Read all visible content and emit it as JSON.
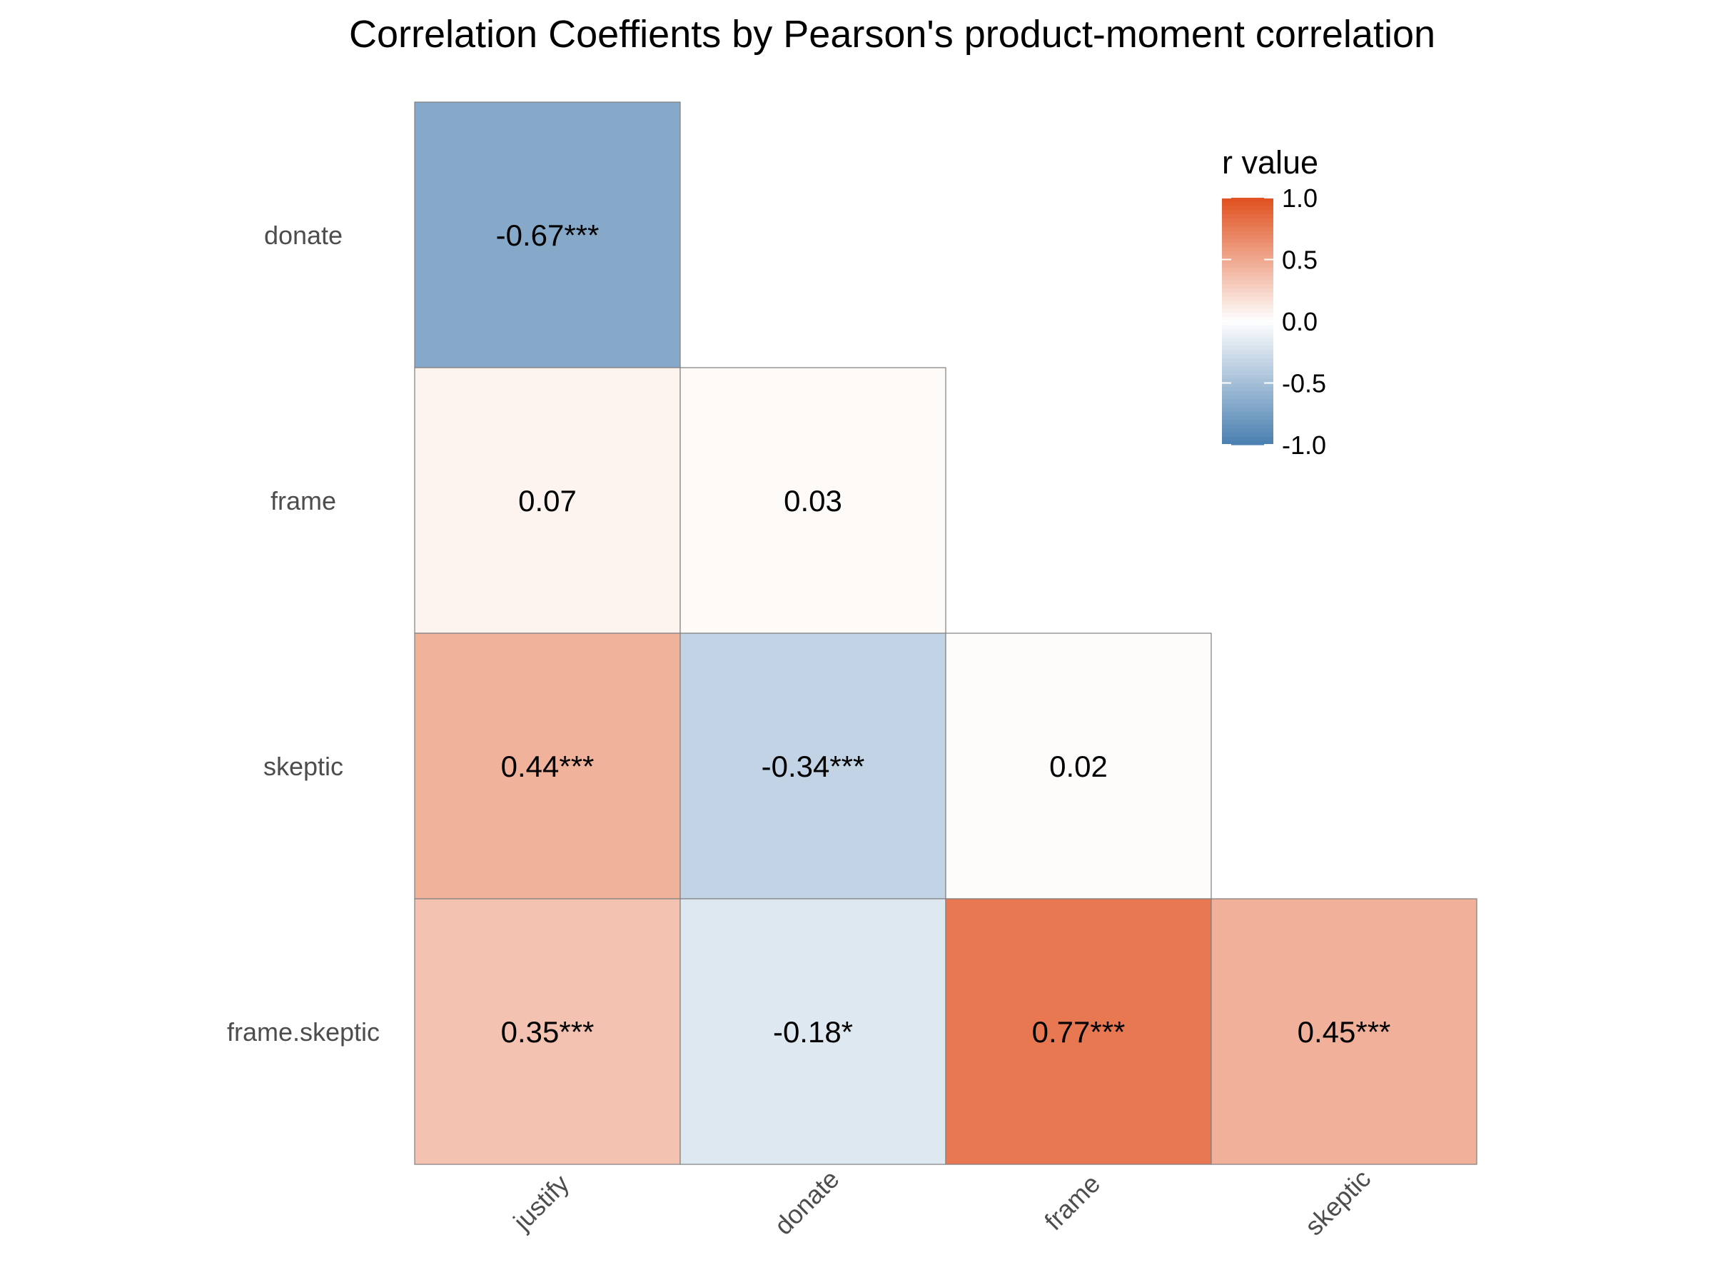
{
  "chart_data": {
    "type": "heatmap",
    "title": "Correlation Coeffients by Pearson's product-moment correlation",
    "x_categories": [
      "justify",
      "donate",
      "frame",
      "skeptic"
    ],
    "y_categories": [
      "donate",
      "frame",
      "skeptic",
      "frame.skeptic"
    ],
    "cells": [
      {
        "x": "justify",
        "y": "donate",
        "value": -0.67,
        "label": "-0.67***"
      },
      {
        "x": "justify",
        "y": "frame",
        "value": 0.07,
        "label": "0.07"
      },
      {
        "x": "donate",
        "y": "frame",
        "value": 0.03,
        "label": "0.03"
      },
      {
        "x": "justify",
        "y": "skeptic",
        "value": 0.44,
        "label": "0.44***"
      },
      {
        "x": "donate",
        "y": "skeptic",
        "value": -0.34,
        "label": "-0.34***"
      },
      {
        "x": "frame",
        "y": "skeptic",
        "value": 0.02,
        "label": "0.02"
      },
      {
        "x": "justify",
        "y": "frame.skeptic",
        "value": 0.35,
        "label": "0.35***"
      },
      {
        "x": "donate",
        "y": "frame.skeptic",
        "value": -0.18,
        "label": "-0.18*"
      },
      {
        "x": "frame",
        "y": "frame.skeptic",
        "value": 0.77,
        "label": "0.77***"
      },
      {
        "x": "skeptic",
        "y": "frame.skeptic",
        "value": 0.45,
        "label": "0.45***"
      }
    ],
    "legend": {
      "title": "r value",
      "ticks": [
        {
          "value": 1.0,
          "label": "1.0"
        },
        {
          "value": 0.5,
          "label": "0.5"
        },
        {
          "value": 0.0,
          "label": "0.0"
        },
        {
          "value": -0.5,
          "label": "-0.5"
        },
        {
          "value": -1.0,
          "label": "-1.0"
        }
      ],
      "limits": [
        -1,
        1
      ],
      "placement": "top-right"
    },
    "colors": {
      "low": "#4a7fb0",
      "mid": "#ffffff",
      "high": "#e0501e",
      "cell_border": "#7f7f7f"
    },
    "grid": false
  }
}
